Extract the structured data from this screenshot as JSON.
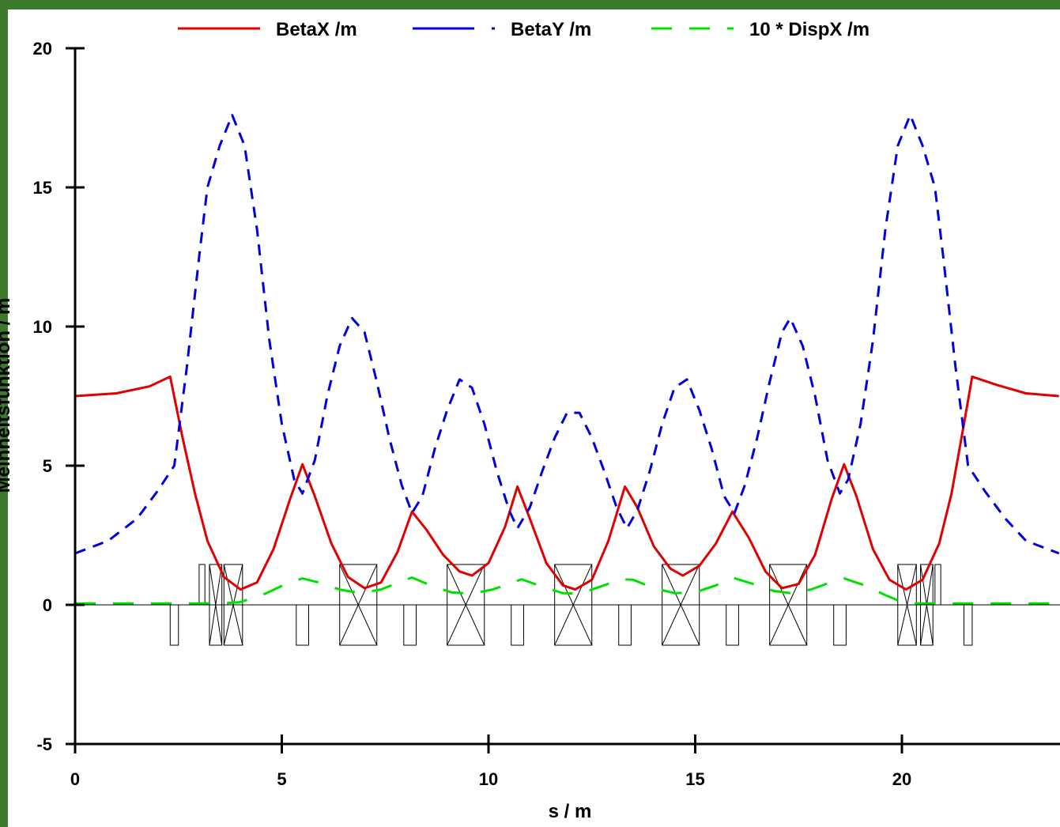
{
  "chart_data": {
    "type": "line",
    "title": "",
    "xlabel": "s / m",
    "ylabel": "Meinheitsfunktion / m",
    "xlim": [
      0,
      23.8
    ],
    "ylim": [
      -5,
      20
    ],
    "x_ticks": [
      0,
      5,
      10,
      15,
      20
    ],
    "y_ticks": [
      -5,
      0,
      5,
      10,
      15,
      20
    ],
    "x_tick_labels": [
      "0",
      "5",
      "10",
      "15",
      "20"
    ],
    "y_tick_labels": [
      "-5",
      "0",
      "5",
      "10",
      "15",
      "20"
    ],
    "grid": false,
    "legend_position": "top",
    "legend": [
      "BetaX /m",
      "BetaY /m",
      "10 * DispX /m"
    ],
    "series": [
      {
        "name": "BetaX /m",
        "color": "#e00000",
        "dash": "solid",
        "points": [
          [
            0,
            7.5
          ],
          [
            1,
            7.6
          ],
          [
            1.8,
            7.85
          ],
          [
            2.3,
            8.2
          ],
          [
            2.6,
            6.0
          ],
          [
            2.9,
            4.0
          ],
          [
            3.2,
            2.3
          ],
          [
            3.6,
            1.0
          ],
          [
            4.0,
            0.55
          ],
          [
            4.4,
            0.8
          ],
          [
            4.8,
            2.0
          ],
          [
            5.2,
            3.8
          ],
          [
            5.5,
            5.05
          ],
          [
            5.8,
            3.9
          ],
          [
            6.2,
            2.2
          ],
          [
            6.6,
            1.0
          ],
          [
            7.0,
            0.6
          ],
          [
            7.4,
            0.8
          ],
          [
            7.8,
            1.9
          ],
          [
            8.15,
            3.35
          ],
          [
            8.5,
            2.7
          ],
          [
            8.9,
            1.8
          ],
          [
            9.3,
            1.2
          ],
          [
            9.6,
            1.05
          ],
          [
            10.0,
            1.5
          ],
          [
            10.4,
            2.8
          ],
          [
            10.7,
            4.25
          ],
          [
            11.0,
            3.1
          ],
          [
            11.4,
            1.5
          ],
          [
            11.8,
            0.7
          ],
          [
            12.1,
            0.55
          ],
          [
            12.5,
            0.9
          ],
          [
            12.9,
            2.3
          ],
          [
            13.3,
            4.25
          ],
          [
            13.6,
            3.5
          ],
          [
            14.0,
            2.1
          ],
          [
            14.4,
            1.3
          ],
          [
            14.7,
            1.05
          ],
          [
            15.1,
            1.4
          ],
          [
            15.5,
            2.2
          ],
          [
            15.9,
            3.35
          ],
          [
            16.3,
            2.4
          ],
          [
            16.7,
            1.2
          ],
          [
            17.1,
            0.6
          ],
          [
            17.5,
            0.75
          ],
          [
            17.9,
            1.8
          ],
          [
            18.3,
            3.8
          ],
          [
            18.6,
            5.05
          ],
          [
            18.9,
            3.9
          ],
          [
            19.3,
            2.0
          ],
          [
            19.7,
            0.9
          ],
          [
            20.1,
            0.55
          ],
          [
            20.5,
            0.9
          ],
          [
            20.9,
            2.2
          ],
          [
            21.2,
            4.0
          ],
          [
            21.5,
            6.5
          ],
          [
            21.7,
            8.2
          ],
          [
            22.3,
            7.9
          ],
          [
            23.0,
            7.6
          ],
          [
            23.8,
            7.5
          ]
        ]
      },
      {
        "name": "BetaY /m",
        "color": "#0000e0",
        "dash": "14 10",
        "points": [
          [
            0,
            1.85
          ],
          [
            0.8,
            2.3
          ],
          [
            1.5,
            3.1
          ],
          [
            2.0,
            4.1
          ],
          [
            2.4,
            5.0
          ],
          [
            2.7,
            8.5
          ],
          [
            3.0,
            12.5
          ],
          [
            3.2,
            15.0
          ],
          [
            3.5,
            16.5
          ],
          [
            3.8,
            17.6
          ],
          [
            4.1,
            16.5
          ],
          [
            4.4,
            13.5
          ],
          [
            4.7,
            9.5
          ],
          [
            5.0,
            6.5
          ],
          [
            5.3,
            4.5
          ],
          [
            5.5,
            4.0
          ],
          [
            5.8,
            5.2
          ],
          [
            6.1,
            7.5
          ],
          [
            6.4,
            9.3
          ],
          [
            6.7,
            10.3
          ],
          [
            7.0,
            9.8
          ],
          [
            7.3,
            8.0
          ],
          [
            7.6,
            6.0
          ],
          [
            7.9,
            4.3
          ],
          [
            8.15,
            3.3
          ],
          [
            8.4,
            3.9
          ],
          [
            8.7,
            5.6
          ],
          [
            9.0,
            7.0
          ],
          [
            9.3,
            8.1
          ],
          [
            9.6,
            7.8
          ],
          [
            9.9,
            6.5
          ],
          [
            10.2,
            4.8
          ],
          [
            10.5,
            3.4
          ],
          [
            10.7,
            2.75
          ],
          [
            11.0,
            3.5
          ],
          [
            11.3,
            4.8
          ],
          [
            11.6,
            6.0
          ],
          [
            11.9,
            6.9
          ],
          [
            12.2,
            6.9
          ],
          [
            12.5,
            6.0
          ],
          [
            12.8,
            4.8
          ],
          [
            13.1,
            3.5
          ],
          [
            13.35,
            2.75
          ],
          [
            13.6,
            3.4
          ],
          [
            13.9,
            4.8
          ],
          [
            14.2,
            6.5
          ],
          [
            14.5,
            7.8
          ],
          [
            14.8,
            8.1
          ],
          [
            15.1,
            7.0
          ],
          [
            15.4,
            5.6
          ],
          [
            15.7,
            3.9
          ],
          [
            15.95,
            3.3
          ],
          [
            16.2,
            4.3
          ],
          [
            16.5,
            6.0
          ],
          [
            16.8,
            8.0
          ],
          [
            17.1,
            9.8
          ],
          [
            17.3,
            10.3
          ],
          [
            17.6,
            9.3
          ],
          [
            17.9,
            7.5
          ],
          [
            18.2,
            5.2
          ],
          [
            18.5,
            4.0
          ],
          [
            18.7,
            4.5
          ],
          [
            19.0,
            6.5
          ],
          [
            19.3,
            9.5
          ],
          [
            19.6,
            13.5
          ],
          [
            19.9,
            16.5
          ],
          [
            20.2,
            17.6
          ],
          [
            20.5,
            16.5
          ],
          [
            20.8,
            15.0
          ],
          [
            21.0,
            12.5
          ],
          [
            21.3,
            8.5
          ],
          [
            21.6,
            5.0
          ],
          [
            22.0,
            4.1
          ],
          [
            22.5,
            3.1
          ],
          [
            23.0,
            2.3
          ],
          [
            23.8,
            1.85
          ]
        ]
      },
      {
        "name": "10 * DispX /m",
        "color": "#00e000",
        "dash": "26 22",
        "points": [
          [
            0,
            0.05
          ],
          [
            3.6,
            0.05
          ],
          [
            4.0,
            0.1
          ],
          [
            4.6,
            0.4
          ],
          [
            5.1,
            0.75
          ],
          [
            5.5,
            0.95
          ],
          [
            5.9,
            0.8
          ],
          [
            6.4,
            0.55
          ],
          [
            6.9,
            0.42
          ],
          [
            7.4,
            0.55
          ],
          [
            7.9,
            0.85
          ],
          [
            8.15,
            0.98
          ],
          [
            8.6,
            0.7
          ],
          [
            9.1,
            0.45
          ],
          [
            9.6,
            0.4
          ],
          [
            10.1,
            0.55
          ],
          [
            10.6,
            0.8
          ],
          [
            10.8,
            0.92
          ],
          [
            11.3,
            0.65
          ],
          [
            11.8,
            0.42
          ],
          [
            12.2,
            0.4
          ],
          [
            12.7,
            0.65
          ],
          [
            13.2,
            0.92
          ],
          [
            13.5,
            0.9
          ],
          [
            14.0,
            0.6
          ],
          [
            14.5,
            0.42
          ],
          [
            15.0,
            0.45
          ],
          [
            15.5,
            0.7
          ],
          [
            15.9,
            0.98
          ],
          [
            16.4,
            0.75
          ],
          [
            16.9,
            0.5
          ],
          [
            17.3,
            0.42
          ],
          [
            17.8,
            0.55
          ],
          [
            18.3,
            0.82
          ],
          [
            18.6,
            0.95
          ],
          [
            19.1,
            0.7
          ],
          [
            19.6,
            0.35
          ],
          [
            20.0,
            0.1
          ],
          [
            20.4,
            0.05
          ],
          [
            23.8,
            0.05
          ]
        ]
      }
    ],
    "lattice_elements": [
      {
        "s": 2.3,
        "w": 0.2,
        "type": "bend"
      },
      {
        "s": 3.0,
        "w": 0.14,
        "type": "corrector"
      },
      {
        "s": 3.25,
        "w": 0.3,
        "type": "quad"
      },
      {
        "s": 3.6,
        "w": 0.45,
        "type": "quad"
      },
      {
        "s": 5.35,
        "w": 0.3,
        "type": "bend"
      },
      {
        "s": 6.4,
        "w": 0.9,
        "type": "quad"
      },
      {
        "s": 7.95,
        "w": 0.3,
        "type": "bend"
      },
      {
        "s": 9.0,
        "w": 0.9,
        "type": "quad"
      },
      {
        "s": 10.55,
        "w": 0.3,
        "type": "bend"
      },
      {
        "s": 11.6,
        "w": 0.9,
        "type": "quad"
      },
      {
        "s": 13.15,
        "w": 0.3,
        "type": "bend"
      },
      {
        "s": 14.2,
        "w": 0.9,
        "type": "quad"
      },
      {
        "s": 15.75,
        "w": 0.3,
        "type": "bend"
      },
      {
        "s": 16.8,
        "w": 0.9,
        "type": "quad"
      },
      {
        "s": 18.35,
        "w": 0.3,
        "type": "bend"
      },
      {
        "s": 19.9,
        "w": 0.45,
        "type": "quad"
      },
      {
        "s": 20.45,
        "w": 0.3,
        "type": "quad"
      },
      {
        "s": 20.8,
        "w": 0.14,
        "type": "corrector"
      },
      {
        "s": 21.5,
        "w": 0.2,
        "type": "bend"
      }
    ]
  }
}
